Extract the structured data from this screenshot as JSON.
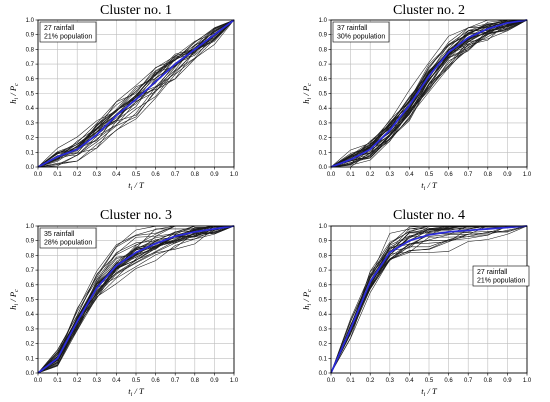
{
  "chart_data": [
    {
      "type": "line",
      "title": "Cluster no. 1",
      "xlabel": "t_i / T",
      "ylabel": "h_i / P_c",
      "xlim": [
        0,
        1
      ],
      "ylim": [
        0,
        1
      ],
      "xticks": [
        "0.0",
        "0.1",
        "0.2",
        "0.3",
        "0.4",
        "0.5",
        "0.6",
        "0.7",
        "0.8",
        "0.9",
        "1.0"
      ],
      "yticks": [
        "0.0",
        "0.1",
        "0.2",
        "0.3",
        "0.4",
        "0.5",
        "0.6",
        "0.7",
        "0.8",
        "0.9",
        "1.0"
      ],
      "grid": true,
      "annotation": [
        "27 rainfall",
        "21% population"
      ],
      "annotation_position": "top-left",
      "x": [
        0,
        0.1,
        0.2,
        0.3,
        0.4,
        0.5,
        0.6,
        0.7,
        0.8,
        0.9,
        1.0
      ],
      "mean": [
        0,
        0.07,
        0.12,
        0.22,
        0.35,
        0.46,
        0.58,
        0.7,
        0.8,
        0.9,
        1.0
      ],
      "spread": 0.09,
      "n_curves": 27,
      "mean_color": "#2a2ad8",
      "curve_color": "#1a1a1a"
    },
    {
      "type": "line",
      "title": "Cluster no. 2",
      "xlabel": "t_i / T",
      "ylabel": "h_i / P_c",
      "xlim": [
        0,
        1
      ],
      "ylim": [
        0,
        1
      ],
      "xticks": [
        "0.0",
        "0.1",
        "0.2",
        "0.3",
        "0.4",
        "0.5",
        "0.6",
        "0.7",
        "0.8",
        "0.9",
        "1.0"
      ],
      "yticks": [
        "0.0",
        "0.1",
        "0.2",
        "0.3",
        "0.4",
        "0.5",
        "0.6",
        "0.7",
        "0.8",
        "0.9",
        "1.0"
      ],
      "grid": true,
      "annotation": [
        "37 rainfall",
        "30% population"
      ],
      "annotation_position": "top-left",
      "x": [
        0,
        0.1,
        0.2,
        0.3,
        0.4,
        0.5,
        0.6,
        0.7,
        0.8,
        0.9,
        1.0
      ],
      "mean": [
        0,
        0.05,
        0.12,
        0.25,
        0.42,
        0.62,
        0.78,
        0.88,
        0.94,
        0.98,
        1.0
      ],
      "spread": 0.08,
      "n_curves": 37,
      "mean_color": "#2a2ad8",
      "curve_color": "#1a1a1a"
    },
    {
      "type": "line",
      "title": "Cluster no. 3",
      "xlabel": "t_i / T",
      "ylabel": "h_i / P_c",
      "xlim": [
        0,
        1
      ],
      "ylim": [
        0,
        1
      ],
      "xticks": [
        "0.0",
        "0.1",
        "0.2",
        "0.3",
        "0.4",
        "0.5",
        "0.6",
        "0.7",
        "0.8",
        "0.9",
        "1.0"
      ],
      "yticks": [
        "0.0",
        "0.1",
        "0.2",
        "0.3",
        "0.4",
        "0.5",
        "0.6",
        "0.7",
        "0.8",
        "0.9",
        "1.0"
      ],
      "grid": true,
      "annotation": [
        "35 rainfall",
        "28% population"
      ],
      "annotation_position": "top-left",
      "x": [
        0,
        0.1,
        0.2,
        0.3,
        0.4,
        0.5,
        0.6,
        0.7,
        0.8,
        0.9,
        1.0
      ],
      "mean": [
        0,
        0.1,
        0.35,
        0.58,
        0.73,
        0.82,
        0.88,
        0.93,
        0.96,
        0.98,
        1.0
      ],
      "spread": 0.09,
      "n_curves": 35,
      "mean_color": "#2a2ad8",
      "curve_color": "#1a1a1a"
    },
    {
      "type": "line",
      "title": "Cluster no. 4",
      "xlabel": "t_i / T",
      "ylabel": "h_i / P_c",
      "xlim": [
        0,
        1
      ],
      "ylim": [
        0,
        1
      ],
      "xticks": [
        "0.0",
        "0.1",
        "0.2",
        "0.3",
        "0.4",
        "0.5",
        "0.6",
        "0.7",
        "0.8",
        "0.9",
        "1.0"
      ],
      "yticks": [
        "0.0",
        "0.1",
        "0.2",
        "0.3",
        "0.4",
        "0.5",
        "0.6",
        "0.7",
        "0.8",
        "0.9",
        "1.0"
      ],
      "grid": true,
      "annotation": [
        "27 rainfall",
        "21% population"
      ],
      "annotation_position": "center-right",
      "x": [
        0,
        0.1,
        0.2,
        0.3,
        0.4,
        0.5,
        0.6,
        0.7,
        0.8,
        0.9,
        1.0
      ],
      "mean": [
        0,
        0.3,
        0.62,
        0.82,
        0.9,
        0.94,
        0.96,
        0.97,
        0.98,
        0.99,
        1.0
      ],
      "spread": 0.09,
      "n_curves": 27,
      "mean_color": "#2a2ad8",
      "curve_color": "#1a1a1a"
    }
  ]
}
